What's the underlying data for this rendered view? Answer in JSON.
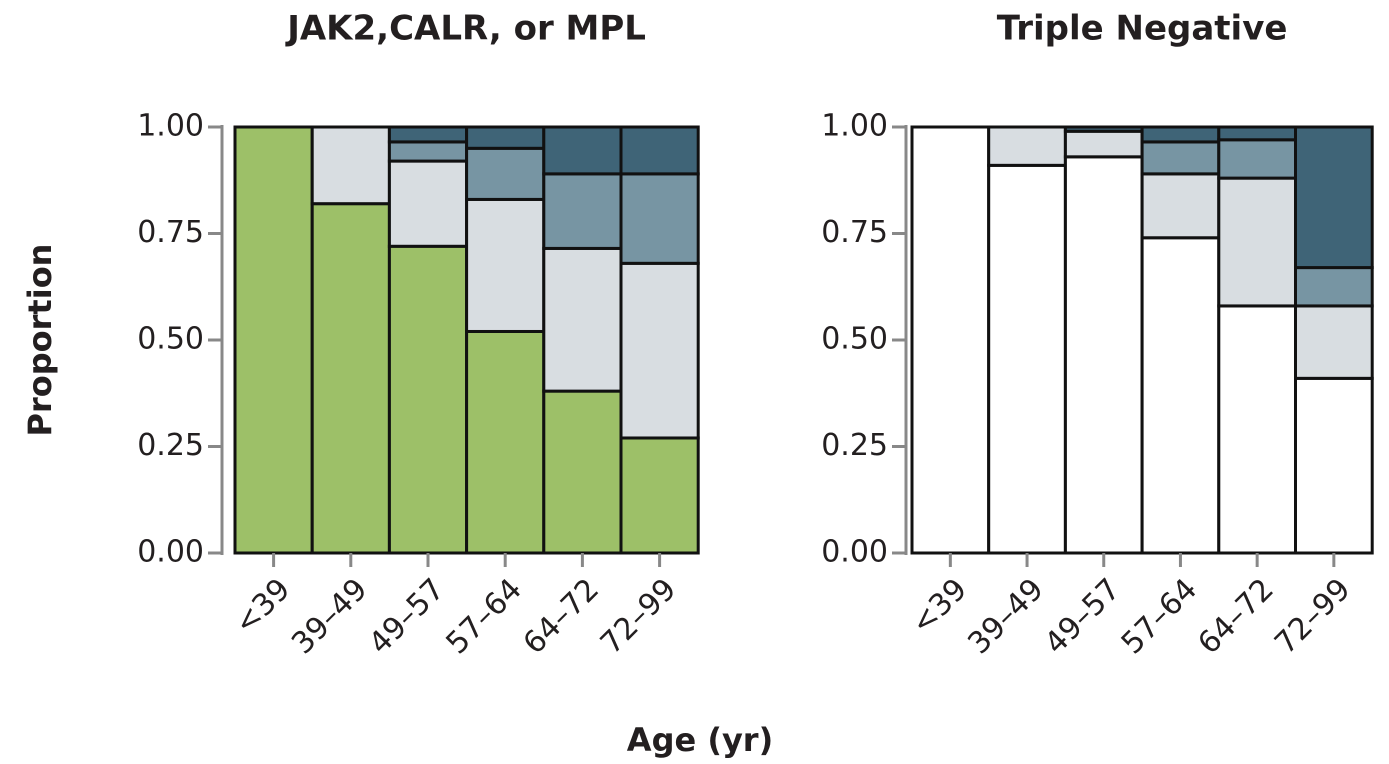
{
  "chart_data": [
    {
      "type": "stacked-bar",
      "title": "JAK2,CALR, or MPL",
      "ylabel": "Proportion",
      "categories": [
        "<39",
        "39–49",
        "49–57",
        "57–64",
        "64–72",
        "72–99"
      ],
      "series": [
        {
          "color": "#9dc068",
          "values": [
            1.0,
            0.82,
            0.72,
            0.52,
            0.38,
            0.27
          ]
        },
        {
          "color": "#d8dde1",
          "values": [
            0,
            0.18,
            0.2,
            0.31,
            0.335,
            0.41
          ]
        },
        {
          "color": "#7795a3",
          "values": [
            0,
            0,
            0.045,
            0.12,
            0.175,
            0.21
          ]
        },
        {
          "color": "#3f6477",
          "values": [
            0,
            0,
            0.035,
            0.05,
            0.11,
            0.11
          ]
        }
      ],
      "ylim": [
        0,
        1
      ],
      "yticks": [
        {
          "value": 0,
          "label": "0.00"
        },
        {
          "value": 0.25,
          "label": "0.25"
        },
        {
          "value": 0.5,
          "label": "0.50"
        },
        {
          "value": 0.75,
          "label": "0.75"
        },
        {
          "value": 1,
          "label": "1.00"
        }
      ]
    },
    {
      "type": "stacked-bar",
      "title": "Triple Negative",
      "categories": [
        "<39",
        "39–49",
        "49–57",
        "57–64",
        "64–72",
        "72–99"
      ],
      "series": [
        {
          "color": "#ffffff",
          "values": [
            1.0,
            0.91,
            0.93,
            0.74,
            0.58,
            0.41
          ]
        },
        {
          "color": "#d8dde1",
          "values": [
            0,
            0.09,
            0.06,
            0.15,
            0.3,
            0.17
          ]
        },
        {
          "color": "#7795a3",
          "values": [
            0,
            0,
            0,
            0.075,
            0.09,
            0.09
          ]
        },
        {
          "color": "#3f6477",
          "values": [
            0,
            0,
            0.01,
            0.035,
            0.03,
            0.33
          ]
        }
      ],
      "ylim": [
        0,
        1
      ],
      "yticks": [
        {
          "value": 0,
          "label": "0.00"
        },
        {
          "value": 0.25,
          "label": "0.25"
        },
        {
          "value": 0.5,
          "label": "0.50"
        },
        {
          "value": 0.75,
          "label": "0.75"
        },
        {
          "value": 1,
          "label": "1.00"
        }
      ]
    }
  ],
  "xlabel": "Age (yr)"
}
